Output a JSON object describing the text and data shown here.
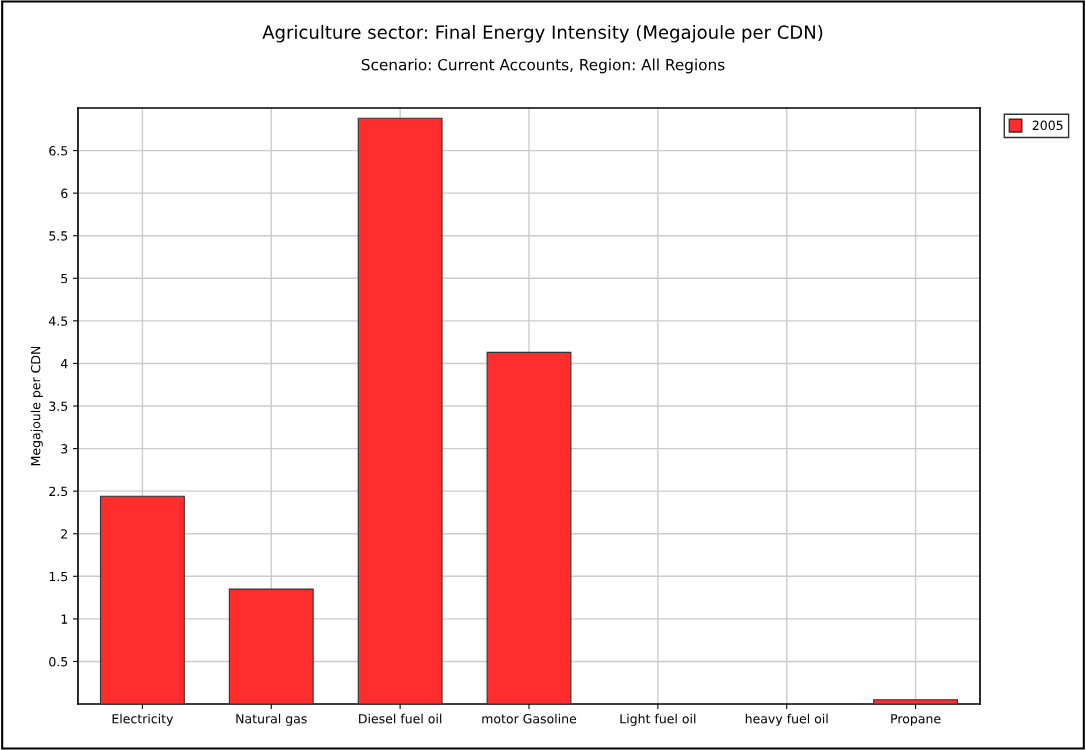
{
  "chart_data": {
    "type": "bar",
    "title": "Agriculture sector: Final Energy Intensity (Megajoule per CDN)",
    "subtitle": "Scenario: Current Accounts, Region: All Regions",
    "ylabel": "Megajoule per CDN",
    "categories": [
      "Electricity",
      "Natural gas",
      "Diesel fuel oil",
      "motor Gasoline",
      "Light fuel oil",
      "heavy fuel oil",
      "Propane"
    ],
    "series": [
      {
        "name": "2005",
        "color": "#ff2d2d",
        "values": [
          2.44,
          1.35,
          6.88,
          4.13,
          0,
          0,
          0.05
        ]
      }
    ],
    "ylim": [
      0,
      7
    ],
    "yticks": [
      0.5,
      1,
      1.5,
      2,
      2.5,
      3,
      3.5,
      4,
      4.5,
      5,
      5.5,
      6,
      6.5
    ],
    "grid": true,
    "legend": "top right"
  }
}
